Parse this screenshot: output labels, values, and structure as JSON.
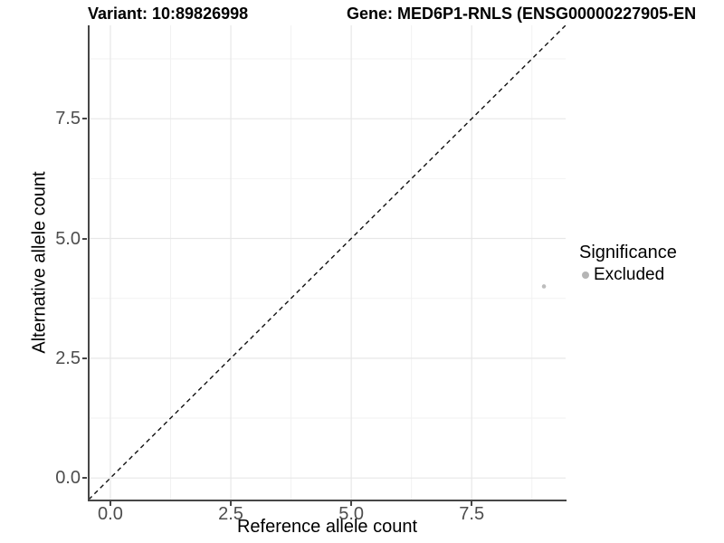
{
  "header": {
    "variant_title": "Variant: 10:89826998",
    "gene_title": "Gene: MED6P1-RNLS (ENSG00000227905-EN"
  },
  "axes": {
    "x_label": "Reference allele count",
    "y_label": "Alternative allele count"
  },
  "legend": {
    "title": "Significance",
    "items": [
      {
        "label": "Excluded",
        "color": "#b5b5b5"
      }
    ]
  },
  "theme": {
    "background": "#ffffff",
    "axis_line": "#464646",
    "tick_label_color": "#4d4d4d",
    "grid_major": "#e7e7e7",
    "grid_minor": "#f2f2f2",
    "reference_line_color": "#111111",
    "point_color": "#bdbdbd"
  },
  "chart_data": {
    "type": "scatter",
    "title": "Variant: 10:89826998   Gene: MED6P1-RNLS (ENSG00000227905-EN",
    "xlabel": "Reference allele count",
    "ylabel": "Alternative allele count",
    "xlim": [
      -0.45,
      9.45
    ],
    "ylim": [
      -0.45,
      9.45
    ],
    "x_ticks": [
      {
        "value": 0,
        "label": "0.0"
      },
      {
        "value": 2.5,
        "label": "2.5"
      },
      {
        "value": 5,
        "label": "5.0"
      },
      {
        "value": 7.5,
        "label": "7.5"
      }
    ],
    "y_ticks": [
      {
        "value": 0,
        "label": "0.0"
      },
      {
        "value": 2.5,
        "label": "2.5"
      },
      {
        "value": 5,
        "label": "5.0"
      },
      {
        "value": 7.5,
        "label": "7.5"
      }
    ],
    "minor_ticks": [
      1.25,
      3.75,
      6.25,
      8.75
    ],
    "grid": true,
    "legend_position": "right",
    "series": [
      {
        "name": "Excluded",
        "color": "#bdbdbd",
        "points": [
          {
            "x": 9,
            "y": 4
          }
        ]
      }
    ],
    "reference_line": {
      "slope": 1,
      "intercept": 0,
      "style": "dashed",
      "color": "#111111"
    }
  }
}
